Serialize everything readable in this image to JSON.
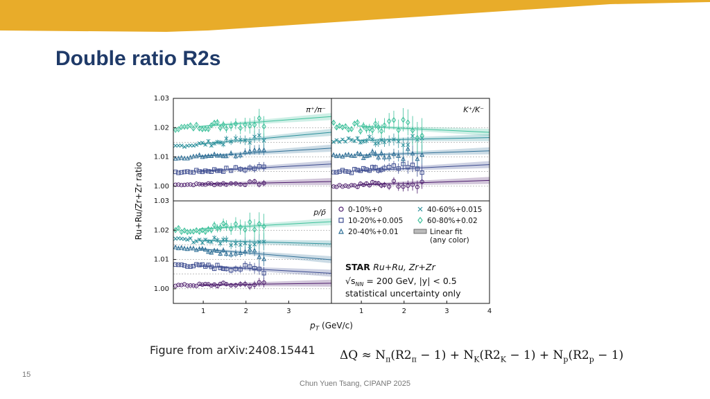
{
  "slide": {
    "title": "Double ratio R2s",
    "caption": "Figure from arXiv:2408.15441",
    "formula": {
      "lhs": "ΔQ ≈ ",
      "terms": [
        {
          "coef": "N",
          "sub": "π",
          "mid": "(R2",
          "sub2": "π",
          "tail": " − 1)"
        },
        {
          "coef": "N",
          "sub": "K",
          "mid": "(R2",
          "sub2": "K",
          "tail": " − 1)"
        },
        {
          "coef": "N",
          "sub": "p",
          "mid": "(R2",
          "sub2": "p",
          "tail": " − 1)"
        }
      ],
      "plus": " + "
    },
    "page_number": "15",
    "footer": "Chun Yuen Tsang, CIPANP 2025"
  },
  "colors": {
    "banner": "#e8ac2a",
    "title": "#1f3a68",
    "c0": "#4b1a6b",
    "c10": "#3b4a8f",
    "c20": "#2f6f96",
    "c40": "#2a8f9a",
    "c60": "#3cc09a"
  },
  "chart_data": {
    "type": "scatter",
    "ylabel": "Ru+Ru/Zr+Zr ratio",
    "xlabel": "p_T (GeV/c)",
    "xlim": [
      0.3,
      4.0
    ],
    "ylim": [
      0.995,
      1.03
    ],
    "xticks": [
      1,
      2,
      3,
      4
    ],
    "yticks": [
      1.0,
      1.01,
      1.02,
      1.03
    ],
    "ytick_labels": [
      "1.00",
      "1.01",
      "1.02",
      "1.03"
    ],
    "panels": [
      {
        "label": "π⁺/π⁻",
        "show_yticks": true,
        "show_xticks": false,
        "marker_max_x": 2.5,
        "series": [
          {
            "name": "0-10%+0",
            "offset": 0.0,
            "fit": [
              1.0007,
              0.0003
            ],
            "noise": 0.0004
          },
          {
            "name": "10-20%+0.005",
            "offset": 0.005,
            "fit": [
              1.0052,
              0.0008
            ],
            "noise": 0.0006
          },
          {
            "name": "20-40%+0.01",
            "offset": 0.01,
            "fit": [
              1.0103,
              0.0009
            ],
            "noise": 0.0007
          },
          {
            "name": "40-60%+0.015",
            "offset": 0.015,
            "fit": [
              1.0145,
              0.0013
            ],
            "noise": 0.0009
          },
          {
            "name": "60-80%+0.02",
            "offset": 0.02,
            "fit": [
              1.0205,
              0.0011
            ],
            "noise": 0.0013
          }
        ]
      },
      {
        "label": "K⁺/K⁻",
        "show_yticks": false,
        "show_xticks": false,
        "marker_max_x": 2.5,
        "series": [
          {
            "name": "0-10%+0",
            "offset": 0.0,
            "fit": [
              1.0005,
              0.0005
            ],
            "noise": 0.0009
          },
          {
            "name": "10-20%+0.005",
            "offset": 0.005,
            "fit": [
              1.0053,
              0.0007
            ],
            "noise": 0.0011
          },
          {
            "name": "20-40%+0.01",
            "offset": 0.01,
            "fit": [
              1.0106,
              0.0005
            ],
            "noise": 0.0012
          },
          {
            "name": "40-60%+0.015",
            "offset": 0.015,
            "fit": [
              1.0157,
              0.0003
            ],
            "noise": 0.0014
          },
          {
            "name": "60-80%+0.02",
            "offset": 0.02,
            "fit": [
              1.0205,
              -0.0007
            ],
            "noise": 0.0022
          }
        ]
      },
      {
        "label": "p/p̄",
        "show_yticks": true,
        "show_xticks": true,
        "marker_max_x": 2.5,
        "series": [
          {
            "name": "0-10%+0",
            "offset": 0.0,
            "fit": [
              1.0013,
              0.0002
            ],
            "noise": 0.0006
          },
          {
            "name": "10-20%+0.005",
            "offset": 0.005,
            "fit": [
              1.0077,
              -0.0008
            ],
            "noise": 0.0008
          },
          {
            "name": "20-40%+0.01",
            "offset": 0.01,
            "fit": [
              1.0135,
              -0.0012
            ],
            "noise": 0.0009
          },
          {
            "name": "40-60%+0.015",
            "offset": 0.015,
            "fit": [
              1.0165,
              -0.0004
            ],
            "noise": 0.0011
          },
          {
            "name": "60-80%+0.02",
            "offset": 0.02,
            "fit": [
              1.0205,
              0.0008
            ],
            "noise": 0.0016
          }
        ]
      }
    ],
    "legend": {
      "entries": [
        {
          "label": "0-10%+0",
          "marker": "circle",
          "color": "#4b1a6b"
        },
        {
          "label": "40-60%+0.015",
          "marker": "cross",
          "color": "#2a8f9a"
        },
        {
          "label": "10-20%+0.005",
          "marker": "square",
          "color": "#3b4a8f"
        },
        {
          "label": "60-80%+0.02",
          "marker": "diamond",
          "color": "#3cc09a"
        },
        {
          "label": "20-40%+0.01",
          "marker": "triangle",
          "color": "#2f6f96"
        },
        {
          "label": "Linear fit",
          "marker": "band",
          "color": "#888888",
          "label2": "(any color)"
        }
      ],
      "placement": "bottom-right panel"
    },
    "annotation": {
      "experiment": "STAR",
      "system": "Ru+Ru, Zr+Zr",
      "energy_sym": "√s",
      "energy_sub": "NN",
      "energy": " = 200 GeV, |y| < 0.5",
      "note": "statistical uncertainty only"
    },
    "grid": false
  }
}
